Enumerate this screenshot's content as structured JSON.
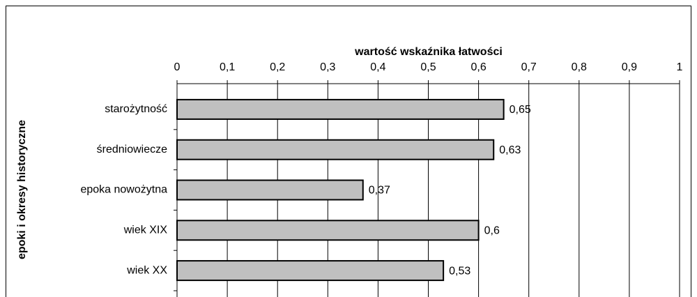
{
  "chart_data": {
    "type": "bar",
    "orientation": "horizontal",
    "x_label": "wartość wskaźnika łatwości",
    "y_label": "epoki i okresy historyczne",
    "categories": [
      "starożytność",
      "średniowiecze",
      "epoka nowożytna",
      "wiek XIX",
      "wiek XX"
    ],
    "values": [
      0.65,
      0.63,
      0.37,
      0.6,
      0.53
    ],
    "value_labels": [
      "0,65",
      "0,63",
      "0,37",
      "0,6",
      "0,53"
    ],
    "color": "#c0c0c0",
    "xlim": [
      0,
      1
    ],
    "xticks": [
      0,
      {
        "value": 0.1,
        "label": "0,1"
      },
      {
        "value": 0.2,
        "label": "0,2"
      },
      {
        "value": 0.3,
        "label": "0,3"
      },
      {
        "value": 0.4,
        "label": "0,4"
      },
      {
        "value": 0.5,
        "label": "0,5"
      },
      {
        "value": 0.6,
        "label": "0,6"
      },
      {
        "value": 0.7,
        "label": "0,7"
      },
      {
        "value": 0.8,
        "label": "0,8"
      },
      {
        "value": 0.9,
        "label": "0,9"
      },
      1
    ],
    "grid": true
  }
}
